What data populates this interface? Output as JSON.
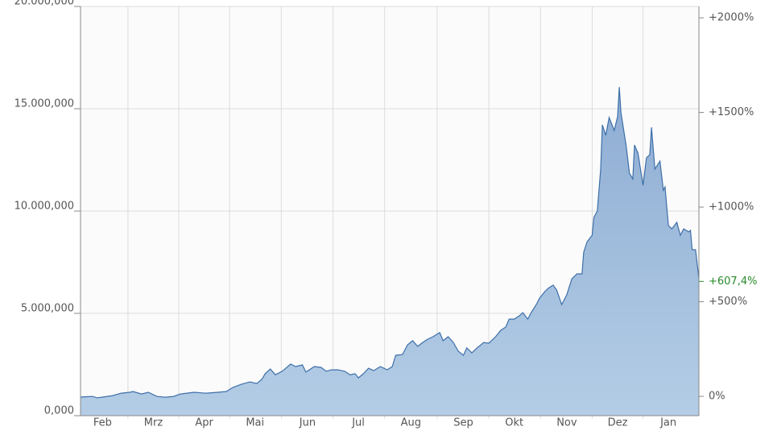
{
  "chart_data": {
    "type": "area",
    "x": [
      0,
      7,
      10,
      19,
      24,
      29,
      31,
      36,
      40,
      45,
      50,
      55,
      59,
      67,
      74,
      81,
      86,
      90,
      95,
      100,
      104,
      107,
      109,
      112,
      115,
      119,
      124,
      127,
      131,
      133,
      138,
      142,
      145,
      148,
      152,
      156,
      159,
      162,
      164,
      167,
      170,
      173,
      177,
      181,
      184,
      186,
      190,
      193,
      196,
      199,
      202,
      205,
      208,
      212,
      214,
      217,
      220,
      223,
      226,
      228,
      231,
      234,
      238,
      241,
      245,
      248,
      251,
      253,
      256,
      259,
      261,
      264,
      266,
      269,
      271,
      274,
      276,
      279,
      281,
      284,
      287,
      290,
      293,
      296,
      297,
      299,
      302,
      303,
      305,
      307,
      308,
      310,
      312,
      315,
      317,
      318,
      319,
      322,
      324,
      326,
      327,
      329,
      332,
      334,
      336,
      337,
      339,
      342,
      344,
      345,
      347,
      349,
      352,
      354,
      356,
      359,
      360,
      361,
      363,
      365
    ],
    "series": [
      {
        "color": "#3d6fa8",
        "values": [
          910000,
          940000,
          870000,
          980000,
          1100000,
          1140000,
          1180000,
          1060000,
          1140000,
          940000,
          900000,
          940000,
          1060000,
          1140000,
          1100000,
          1140000,
          1180000,
          1380000,
          1540000,
          1650000,
          1570000,
          1770000,
          2050000,
          2280000,
          2000000,
          2170000,
          2520000,
          2400000,
          2480000,
          2130000,
          2400000,
          2360000,
          2170000,
          2240000,
          2240000,
          2170000,
          2000000,
          2050000,
          1850000,
          2050000,
          2320000,
          2200000,
          2400000,
          2240000,
          2400000,
          2950000,
          2990000,
          3460000,
          3660000,
          3390000,
          3580000,
          3740000,
          3860000,
          4060000,
          3660000,
          3860000,
          3580000,
          3150000,
          2950000,
          3310000,
          3070000,
          3310000,
          3580000,
          3540000,
          3860000,
          4170000,
          4330000,
          4720000,
          4720000,
          4880000,
          5040000,
          4720000,
          5040000,
          5430000,
          5750000,
          6060000,
          6220000,
          6380000,
          6140000,
          5430000,
          5910000,
          6690000,
          6930000,
          6930000,
          7990000,
          8500000,
          8820000,
          9690000,
          10000000,
          12050000,
          14210000,
          13700000,
          14570000,
          13940000,
          14610000,
          16060000,
          14800000,
          13230000,
          11850000,
          11570000,
          13230000,
          12830000,
          11260000,
          12600000,
          12760000,
          14090000,
          12050000,
          12440000,
          11020000,
          11180000,
          9290000,
          9130000,
          9450000,
          8820000,
          9130000,
          8980000,
          9060000,
          8110000,
          8110000,
          6690000
        ]
      }
    ],
    "xlim": [
      0,
      365
    ],
    "xticks": [
      {
        "value": 13,
        "label": "Feb"
      },
      {
        "value": 43,
        "label": "Mrz"
      },
      {
        "value": 73,
        "label": "Apr"
      },
      {
        "value": 103,
        "label": "Mai"
      },
      {
        "value": 134,
        "label": "Jun"
      },
      {
        "value": 164,
        "label": "Jul"
      },
      {
        "value": 195,
        "label": "Aug"
      },
      {
        "value": 226,
        "label": "Sep"
      },
      {
        "value": 256,
        "label": "Okt"
      },
      {
        "value": 287,
        "label": "Nov"
      },
      {
        "value": 317,
        "label": "Dez"
      },
      {
        "value": 347,
        "label": "Jan"
      }
    ],
    "ylim": [
      0,
      20000000
    ],
    "yticks": [
      {
        "value": 0,
        "label": "0,000"
      },
      {
        "value": 5000000,
        "label": "5.000,000"
      },
      {
        "value": 10000000,
        "label": "10.000,000"
      },
      {
        "value": 15000000,
        "label": "15.000,000"
      },
      {
        "value": 20000000,
        "label": "20.000,000"
      }
    ],
    "y2lim": [
      -102,
      2060
    ],
    "y2ticks": [
      {
        "value": 0,
        "label": "0%"
      },
      {
        "value": 500,
        "label": "+500%"
      },
      {
        "value": 1000,
        "label": "+1000%"
      },
      {
        "value": 1500,
        "label": "+1500%"
      },
      {
        "value": 2000,
        "label": "+2000%"
      }
    ],
    "annotation": {
      "value": 607.4,
      "label": "+607,4%",
      "color": "#2a8a2a"
    },
    "grid": true
  }
}
